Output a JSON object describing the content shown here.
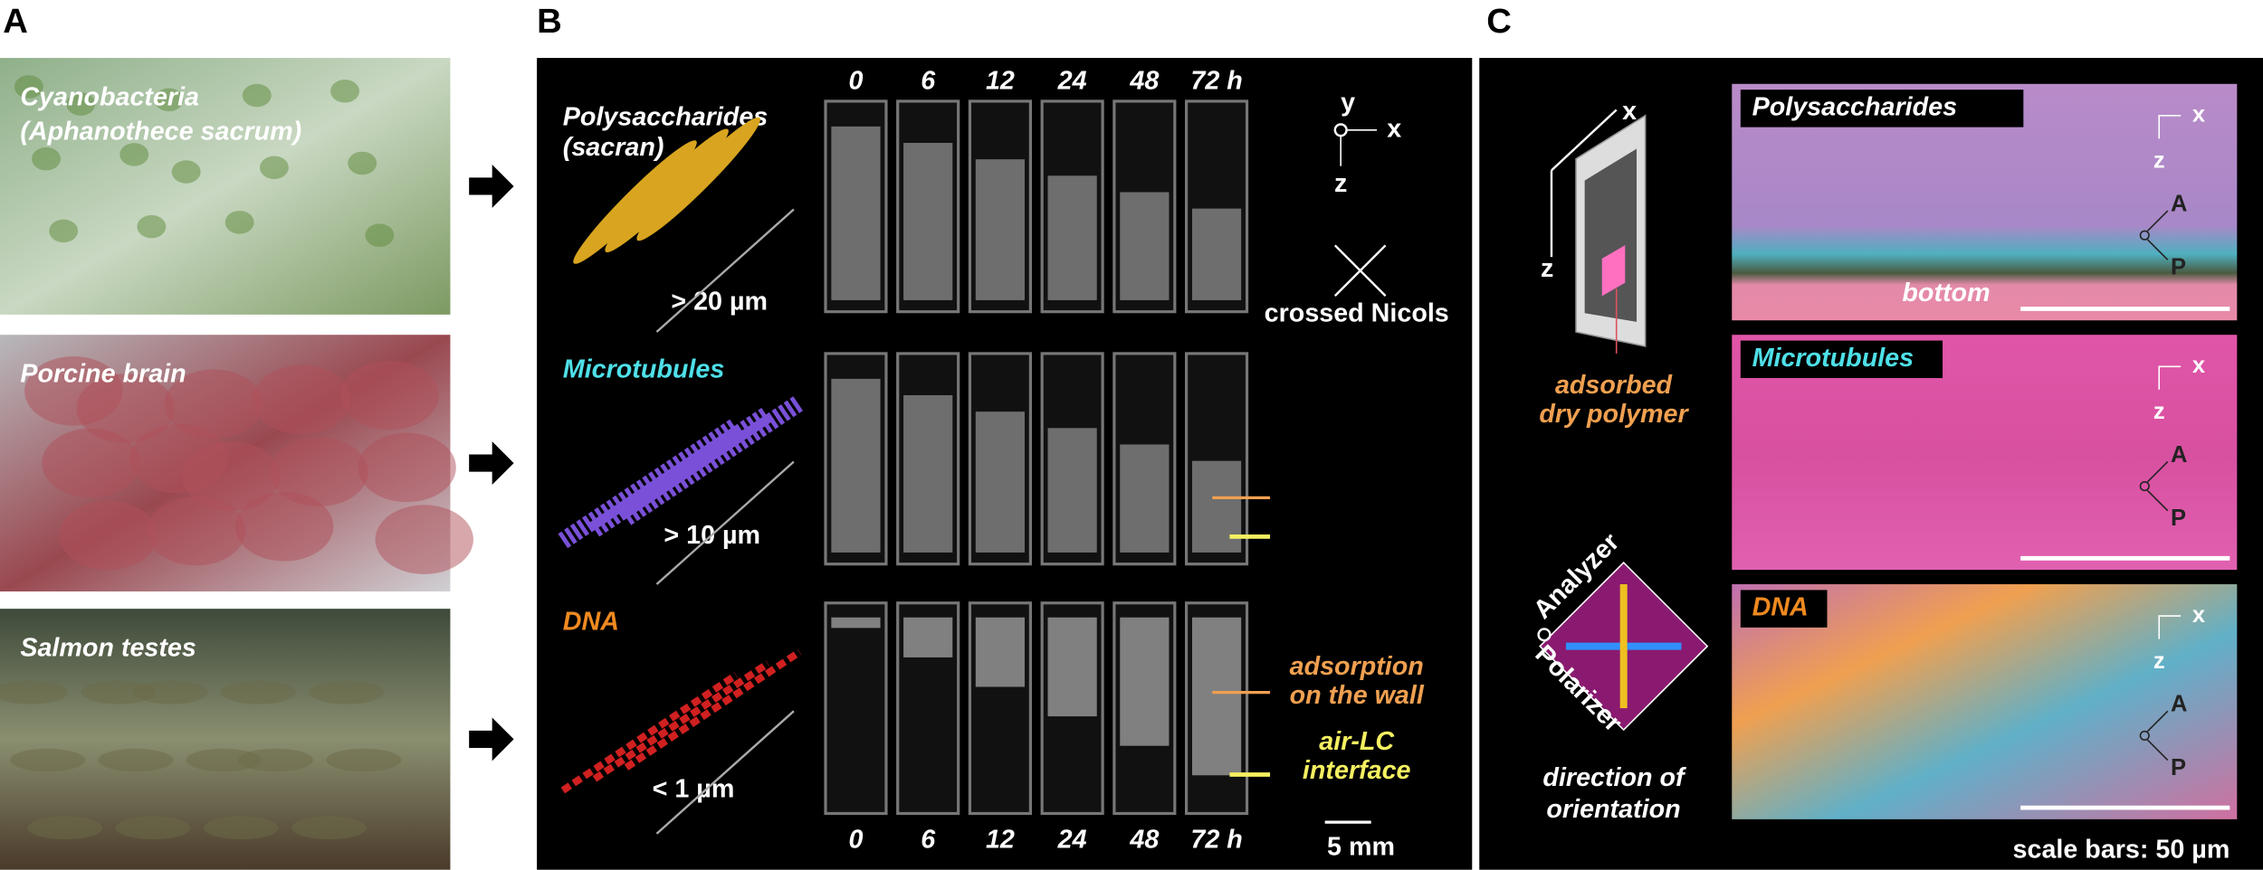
{
  "panel_labels": [
    "A",
    "B",
    "C"
  ],
  "photos": [
    {
      "lines": [
        "Cyanobacteria",
        "(Aphanothece sacrum)"
      ]
    },
    {
      "lines": [
        "Porcine brain"
      ]
    },
    {
      "lines": [
        "Salmon testes"
      ]
    }
  ],
  "times": [
    "0",
    "6",
    "12",
    "24",
    "48",
    "72 h"
  ],
  "rows": [
    {
      "name": [
        "Polysaccharides",
        "(sacran)"
      ],
      "length": "> 20 µm"
    },
    {
      "name": [
        "Microtubules"
      ],
      "length": "> 10 µm"
    },
    {
      "name": [
        "DNA"
      ],
      "length": "< 1 µm"
    }
  ],
  "axis_labels": [
    "y",
    "x",
    "z"
  ],
  "crossed": "crossed Nicols",
  "annotation_wall": [
    "adsorption",
    "on the wall"
  ],
  "annotation_interface": [
    "air-LC",
    "interface"
  ],
  "scale_b": "5 mm",
  "sample": {
    "axes": [
      "x",
      "z"
    ],
    "label": [
      "adsorbed",
      "dry polymer"
    ]
  },
  "polarization": {
    "analyzer": "Analyzer",
    "polarizer": "Polarizer",
    "caption": [
      "direction of",
      "orientation"
    ]
  },
  "micrographs": [
    {
      "name": "Polysaccharides",
      "note": "bottom"
    },
    {
      "name": "Microtubules"
    },
    {
      "name": "DNA"
    }
  ],
  "micro_axes": [
    "x",
    "z",
    "A",
    "P"
  ],
  "scale_c": "scale bars: 50 µm"
}
